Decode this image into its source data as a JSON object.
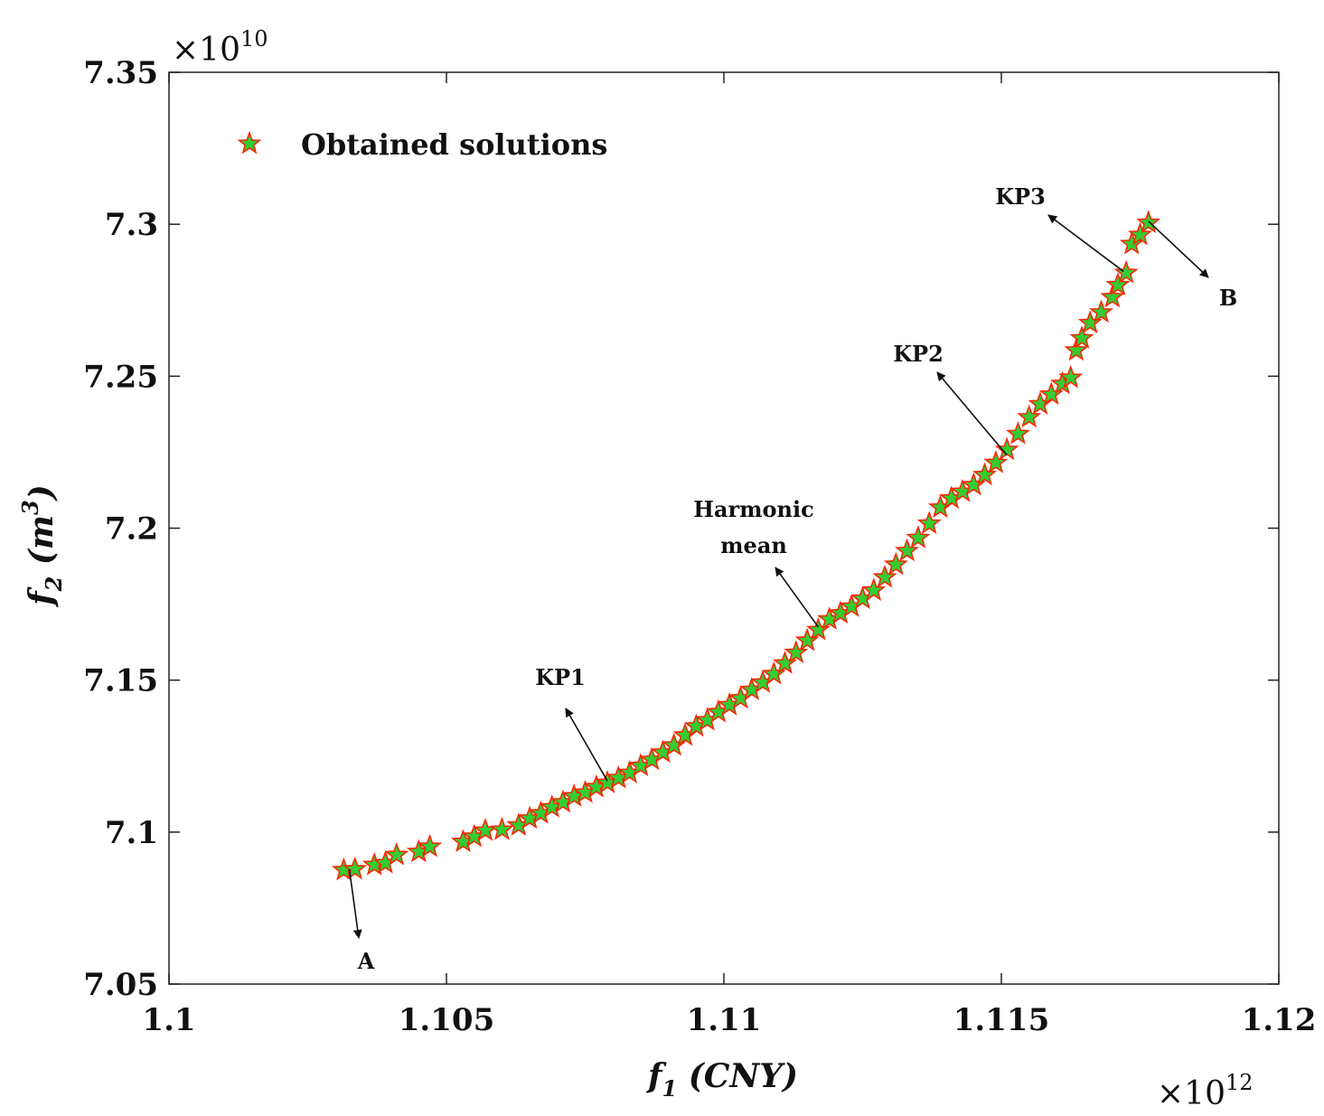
{
  "chart_data": {
    "type": "scatter",
    "title": "",
    "xlabel": "f1 (CNY)",
    "xlabel_parts": {
      "base": "f",
      "sub": "1",
      "rest": " (CNY)"
    },
    "ylabel": "f2 (m3)",
    "ylabel_parts": {
      "base": "f",
      "sub": "2",
      "rest_open": " (m",
      "sup": "3",
      "rest_close": ")"
    },
    "x_multiplier": {
      "prefix": "×10",
      "power": "12"
    },
    "y_multiplier": {
      "prefix": "×10",
      "power": "10"
    },
    "xlim": [
      1.1,
      1.12
    ],
    "ylim": [
      7.05,
      7.35
    ],
    "x_ticks": [
      1.1,
      1.105,
      1.11,
      1.115,
      1.12
    ],
    "x_tick_labels": [
      "1.1",
      "1.105",
      "1.11",
      "1.115",
      "1.12"
    ],
    "y_ticks": [
      7.05,
      7.1,
      7.15,
      7.2,
      7.25,
      7.3,
      7.35
    ],
    "y_tick_labels": [
      "7.05",
      "7.1",
      "7.15",
      "7.2",
      "7.25",
      "7.3",
      "7.35"
    ],
    "grid": false,
    "legend_position": "top-left",
    "series": [
      {
        "name": "Obtained solutions",
        "marker": "star",
        "fill_color": "#33cc33",
        "edge_color": "#ff2200",
        "x": [
          1.10315,
          1.10335,
          1.1037,
          1.1039,
          1.1041,
          1.1045,
          1.1047,
          1.1053,
          1.1055,
          1.1057,
          1.106,
          1.1063,
          1.1065,
          1.1067,
          1.1069,
          1.1071,
          1.1073,
          1.1075,
          1.1077,
          1.1079,
          1.1081,
          1.1083,
          1.1085,
          1.1087,
          1.1089,
          1.1091,
          1.1093,
          1.1095,
          1.1097,
          1.1099,
          1.1101,
          1.1103,
          1.1105,
          1.1107,
          1.1109,
          1.1111,
          1.1113,
          1.1115,
          1.1117,
          1.1119,
          1.1121,
          1.1123,
          1.1125,
          1.1127,
          1.1129,
          1.1131,
          1.1133,
          1.1135,
          1.1137,
          1.1139,
          1.1141,
          1.1143,
          1.1145,
          1.1147,
          1.1149,
          1.1151,
          1.1153,
          1.1155,
          1.1157,
          1.1159,
          1.1161,
          1.11625,
          1.11635,
          1.11645,
          1.1166,
          1.1168,
          1.117,
          1.1171,
          1.11725,
          1.11735,
          1.1175,
          1.11765
        ],
        "y": [
          7.0875,
          7.0878,
          7.0892,
          7.0898,
          7.0925,
          7.0935,
          7.0952,
          7.0968,
          7.0985,
          7.1005,
          7.1008,
          7.1022,
          7.1045,
          7.1062,
          7.1082,
          7.1098,
          7.1118,
          7.113,
          7.1148,
          7.1162,
          7.1178,
          7.1195,
          7.1218,
          7.1238,
          7.1262,
          7.1285,
          7.1318,
          7.1348,
          7.1368,
          7.1395,
          7.1418,
          7.144,
          7.1468,
          7.1492,
          7.152,
          7.1555,
          7.159,
          7.163,
          7.1665,
          7.17,
          7.172,
          7.1742,
          7.1768,
          7.1795,
          7.1838,
          7.188,
          7.1925,
          7.1968,
          7.2015,
          7.2068,
          7.2098,
          7.212,
          7.2142,
          7.2175,
          7.2215,
          7.2258,
          7.231,
          7.2365,
          7.2408,
          7.244,
          7.2475,
          7.2495,
          7.2585,
          7.2625,
          7.2675,
          7.271,
          7.276,
          7.28,
          7.284,
          7.2935,
          7.2965,
          7.3005
        ]
      }
    ],
    "annotations": [
      {
        "lines": [
          "A"
        ],
        "x": 1.10325,
        "y": 7.0878,
        "direction": "down"
      },
      {
        "lines": [
          "KP1"
        ],
        "x": 1.1079,
        "y": 7.1168,
        "direction": "up"
      },
      {
        "lines": [
          "Harmonic",
          "mean"
        ],
        "x": 1.1117,
        "y": 7.1675,
        "direction": "up"
      },
      {
        "lines": [
          "KP2"
        ],
        "x": 1.1151,
        "y": 7.224,
        "direction": "up"
      },
      {
        "lines": [
          "KP3"
        ],
        "x": 1.1172,
        "y": 7.2845,
        "direction": "up"
      },
      {
        "lines": [
          "B"
        ],
        "x": 1.11765,
        "y": 7.301,
        "direction": "down"
      }
    ]
  }
}
